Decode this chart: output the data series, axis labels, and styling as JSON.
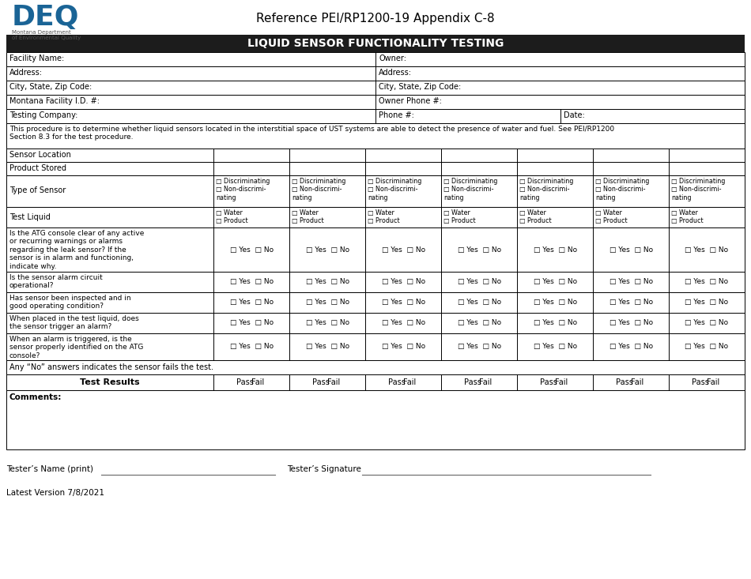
{
  "title_ref": "Reference PEI/RP1200-19 Appendix C-8",
  "header_title": "LIQUID SENSOR FUNCTIONALITY TESTING",
  "header_bg": "#1c1c1c",
  "header_fg": "#ffffff",
  "border_color": "#000000",
  "bg_color": "#ffffff",
  "description": "This procedure is to determine whether liquid sensors located in the interstitial space of UST systems are able to detect the presence of water and fuel. See PEI/RP1200\nSection 8.3 for the test procedure.",
  "sensor_location_label": "Sensor Location",
  "product_stored_label": "Product Stored",
  "type_of_sensor_label": "Type of Sensor",
  "test_liquid_label": "Test Liquid",
  "questions": [
    "Is the ATG console clear of any active\nor recurring warnings or alarms\nregarding the leak sensor? If the\nsensor is in alarm and functioning,\nindicate why.",
    "Is the sensor alarm circuit\noperational?",
    "Has sensor been inspected and in\ngood operating condition?",
    "When placed in the test liquid, does\nthe sensor trigger an alarm?",
    "When an alarm is triggered, is the\nsensor properly identified on the ATG\nconsole?"
  ],
  "any_no_text": "Any “No” answers indicates the sensor fails the test.",
  "test_results_label": "Test Results",
  "comments_label": "Comments:",
  "footer_name_label": "Tester’s Name (print)",
  "footer_sig_label": "Tester’s Signature",
  "footer_version": "Latest Version 7/8/2021"
}
